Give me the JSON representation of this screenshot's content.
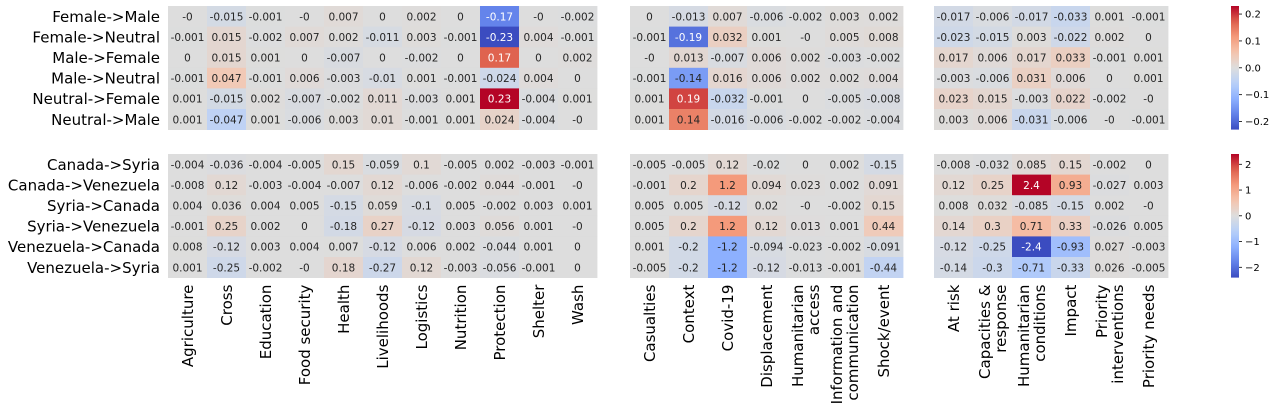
{
  "chart_data": {
    "type": "heatmap",
    "colormap": "coolwarm",
    "null_color": "#dcdcdc",
    "column_groups": [
      [
        "Agriculture",
        "Cross",
        "Education",
        "Food security",
        "Health",
        "Livelihoods",
        "Logistics",
        "Nutrition",
        "Protection",
        "Shelter",
        "Wash"
      ],
      [
        "Casualties",
        "Context",
        "Covid-19",
        "Displacement",
        "Humanitarian\naccess",
        "Information and\ncommunication",
        "Shock/event"
      ],
      [
        "At risk",
        "Capacities &\nresponse",
        "Humanitarian\nconditions",
        "Impact",
        "Priority\ninterventions",
        "Priority needs"
      ]
    ],
    "panels": [
      {
        "rows": [
          "Female->Male",
          "Female->Neutral",
          "Male->Female",
          "Male->Neutral",
          "Neutral->Female",
          "Neutral->Male"
        ],
        "colorbar": {
          "range": [
            -0.23,
            0.23
          ],
          "ticks": [
            -0.2,
            -0.1,
            0.0,
            0.1,
            0.2
          ],
          "tick_labels": [
            "−0.2",
            "−0.1",
            "0.0",
            "0.1",
            "0.2"
          ]
        },
        "groups": [
          [
            [
              "-0",
              "-0.015",
              "-0.001",
              "-0",
              "0.007",
              "0",
              "0.002",
              "0",
              "-0.17",
              "-0",
              "-0.002"
            ],
            [
              "-0.001",
              "0.015",
              "-0.002",
              "0.007",
              "0.002",
              "-0.011",
              "0.003",
              "-0.001",
              "-0.23",
              "0.004",
              "-0.001"
            ],
            [
              "0",
              "0.015",
              "0.001",
              "0",
              "-0.007",
              "0",
              "-0.002",
              "0",
              "0.17",
              "0",
              "0.002"
            ],
            [
              "-0.001",
              "0.047",
              "-0.001",
              "0.006",
              "-0.003",
              "-0.01",
              "0.001",
              "-0.001",
              "-0.024",
              "0.004",
              "0"
            ],
            [
              "0.001",
              "-0.015",
              "0.002",
              "-0.007",
              "-0.002",
              "0.011",
              "-0.003",
              "0.001",
              "0.23",
              "-0.004",
              "0.001"
            ],
            [
              "0.001",
              "-0.047",
              "0.001",
              "-0.006",
              "0.003",
              "0.01",
              "-0.001",
              "0.001",
              "0.024",
              "-0.004",
              "-0"
            ]
          ],
          [
            [
              "0",
              "-0.013",
              "0.007",
              "-0.006",
              "-0.002",
              "0.003",
              "0.002"
            ],
            [
              "-0.001",
              "-0.19",
              "0.032",
              "0.001",
              "-0",
              "0.005",
              "0.008"
            ],
            [
              "-0",
              "0.013",
              "-0.007",
              "0.006",
              "0.002",
              "-0.003",
              "-0.002"
            ],
            [
              "-0.001",
              "-0.14",
              "0.016",
              "0.006",
              "0.002",
              "0.002",
              "0.004"
            ],
            [
              "0.001",
              "0.19",
              "-0.032",
              "-0.001",
              "0",
              "-0.005",
              "-0.008"
            ],
            [
              "0.001",
              "0.14",
              "-0.016",
              "-0.006",
              "-0.002",
              "-0.002",
              "-0.004"
            ]
          ],
          [
            [
              "-0.017",
              "-0.006",
              "-0.017",
              "-0.033",
              "0.001",
              "-0.001"
            ],
            [
              "-0.023",
              "-0.015",
              "0.003",
              "-0.022",
              "0.002",
              "0"
            ],
            [
              "0.017",
              "0.006",
              "0.017",
              "0.033",
              "-0.001",
              "0.001"
            ],
            [
              "-0.003",
              "-0.006",
              "0.031",
              "0.006",
              "0",
              "0.001"
            ],
            [
              "0.023",
              "0.015",
              "-0.003",
              "0.022",
              "-0.002",
              "-0"
            ],
            [
              "0.003",
              "0.006",
              "-0.031",
              "-0.006",
              "-0",
              "-0.001"
            ]
          ]
        ]
      },
      {
        "rows": [
          "Canada->Syria",
          "Canada->Venezuela",
          "Syria->Canada",
          "Syria->Venezuela",
          "Venezuela->Canada",
          "Venezuela->Syria"
        ],
        "colorbar": {
          "range": [
            -2.4,
            2.4
          ],
          "ticks": [
            -2,
            -1,
            0,
            1,
            2
          ],
          "tick_labels": [
            "−2",
            "−1",
            "0",
            "1",
            "2"
          ]
        },
        "groups": [
          [
            [
              "-0.004",
              "-0.036",
              "-0.004",
              "-0.005",
              "0.15",
              "-0.059",
              "0.1",
              "-0.005",
              "0.002",
              "-0.003",
              "-0.001"
            ],
            [
              "-0.008",
              "0.12",
              "-0.003",
              "-0.004",
              "-0.007",
              "0.12",
              "-0.006",
              "-0.002",
              "0.044",
              "-0.001",
              "-0"
            ],
            [
              "0.004",
              "0.036",
              "0.004",
              "0.005",
              "-0.15",
              "0.059",
              "-0.1",
              "0.005",
              "-0.002",
              "0.003",
              "0.001"
            ],
            [
              "-0.001",
              "0.25",
              "0.002",
              "0",
              "-0.18",
              "0.27",
              "-0.12",
              "0.003",
              "0.056",
              "0.001",
              "-0"
            ],
            [
              "0.008",
              "-0.12",
              "0.003",
              "0.004",
              "0.007",
              "-0.12",
              "0.006",
              "0.002",
              "-0.044",
              "0.001",
              "0"
            ],
            [
              "0.001",
              "-0.25",
              "-0.002",
              "-0",
              "0.18",
              "-0.27",
              "0.12",
              "-0.003",
              "-0.056",
              "-0.001",
              "0"
            ]
          ],
          [
            [
              "-0.005",
              "-0.005",
              "0.12",
              "-0.02",
              "0",
              "0.002",
              "-0.15"
            ],
            [
              "-0.001",
              "0.2",
              "1.2",
              "0.094",
              "0.023",
              "0.002",
              "0.091"
            ],
            [
              "0.005",
              "0.005",
              "-0.12",
              "0.02",
              "-0",
              "-0.002",
              "0.15"
            ],
            [
              "0.005",
              "0.2",
              "1.2",
              "0.12",
              "0.013",
              "0.001",
              "0.44"
            ],
            [
              "0.001",
              "-0.2",
              "-1.2",
              "-0.094",
              "-0.023",
              "-0.002",
              "-0.091"
            ],
            [
              "-0.005",
              "-0.2",
              "-1.2",
              "-0.12",
              "-0.013",
              "-0.001",
              "-0.44"
            ]
          ],
          [
            [
              "-0.008",
              "-0.032",
              "0.085",
              "0.15",
              "-0.002",
              "0"
            ],
            [
              "0.12",
              "0.25",
              "2.4",
              "0.93",
              "-0.027",
              "0.003"
            ],
            [
              "0.008",
              "0.032",
              "-0.085",
              "-0.15",
              "0.002",
              "-0"
            ],
            [
              "0.14",
              "0.3",
              "0.71",
              "0.33",
              "-0.026",
              "0.005"
            ],
            [
              "-0.12",
              "-0.25",
              "-2.4",
              "-0.93",
              "0.027",
              "-0.003"
            ],
            [
              "-0.14",
              "-0.3",
              "-0.71",
              "-0.33",
              "0.026",
              "-0.005"
            ]
          ]
        ]
      }
    ]
  }
}
